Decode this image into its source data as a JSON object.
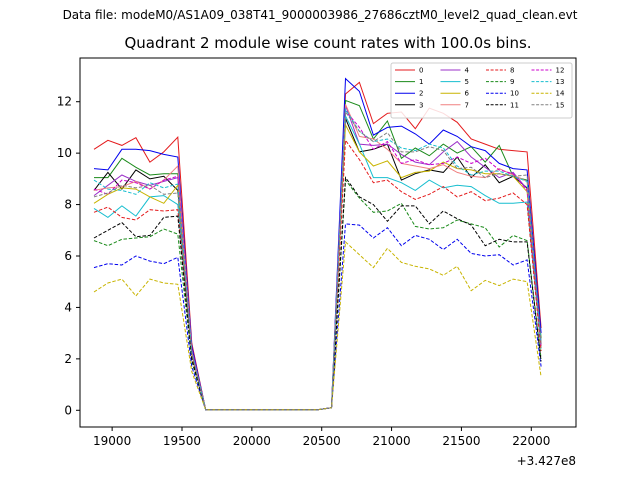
{
  "chart_data": {
    "type": "line",
    "suptitle": "Data file: modeM0/AS1A09_038T41_9000003986_27686cztM0_level2_quad_clean.evt",
    "title": "Quadrant 2 module wise count rates with 100.0s bins.",
    "xlabel": "",
    "ylabel": "",
    "offset_label": "+3.427e8",
    "xlim": [
      18770,
      22320
    ],
    "ylim": [
      -0.65,
      13.7
    ],
    "xticks": [
      19000,
      19500,
      20000,
      20500,
      21000,
      21500,
      22000
    ],
    "yticks": [
      0,
      2,
      4,
      6,
      8,
      10,
      12
    ],
    "legend_loc": "upper-right",
    "legend_ncol": 4,
    "x": [
      18870,
      18970,
      19070,
      19170,
      19270,
      19370,
      19470,
      19570,
      19670,
      19770,
      19870,
      19970,
      20070,
      20170,
      20270,
      20370,
      20470,
      20570,
      20670,
      20770,
      20870,
      20970,
      21070,
      21170,
      21270,
      21370,
      21470,
      21570,
      21670,
      21770,
      21870,
      21970,
      22070
    ],
    "series": [
      {
        "name": "0",
        "color": "#e41a1c",
        "dash": "solid",
        "values": [
          10.15,
          10.5,
          10.3,
          10.6,
          9.65,
          10.05,
          10.62,
          2.6,
          0.02,
          0.02,
          0.02,
          0.02,
          0.02,
          0.02,
          0.02,
          0.02,
          0.02,
          0.1,
          12.3,
          12.75,
          11.15,
          11.55,
          11.6,
          10.95,
          11.75,
          11.55,
          11.2,
          10.55,
          10.35,
          10.15,
          10.1,
          10.05,
          3.2
        ]
      },
      {
        "name": "1",
        "color": "#1a8a1a",
        "dash": "solid",
        "values": [
          9.05,
          9.05,
          9.8,
          9.45,
          9.15,
          9.2,
          9.2,
          2.4,
          0.02,
          0.02,
          0.02,
          0.02,
          0.02,
          0.02,
          0.02,
          0.02,
          0.02,
          0.1,
          12.05,
          11.85,
          10.55,
          11.25,
          9.8,
          10.2,
          9.9,
          10.35,
          10.0,
          10.25,
          9.65,
          10.3,
          9.1,
          8.95,
          2.8
        ]
      },
      {
        "name": "2",
        "color": "#0000ee",
        "dash": "solid",
        "values": [
          9.4,
          9.35,
          10.15,
          10.15,
          10.1,
          9.95,
          9.85,
          2.5,
          0.02,
          0.02,
          0.02,
          0.02,
          0.02,
          0.02,
          0.02,
          0.02,
          0.02,
          0.1,
          12.9,
          12.4,
          10.7,
          11.0,
          11.05,
          10.75,
          10.35,
          10.9,
          10.65,
          10.25,
          10.1,
          9.6,
          9.4,
          9.35,
          3.0
        ]
      },
      {
        "name": "3",
        "color": "#000000",
        "dash": "solid",
        "values": [
          8.55,
          9.25,
          8.6,
          9.35,
          9.0,
          9.1,
          8.55,
          2.3,
          0.02,
          0.02,
          0.02,
          0.02,
          0.02,
          0.02,
          0.02,
          0.02,
          0.02,
          0.1,
          11.35,
          10.05,
          10.15,
          10.35,
          8.95,
          9.2,
          9.35,
          9.25,
          9.85,
          9.05,
          9.55,
          8.85,
          9.1,
          8.65,
          2.6
        ]
      },
      {
        "name": "4",
        "color": "#9b30c8",
        "dash": "solid",
        "values": [
          8.35,
          8.75,
          9.15,
          8.9,
          8.75,
          8.9,
          9.05,
          2.3,
          0.02,
          0.02,
          0.02,
          0.02,
          0.02,
          0.02,
          0.02,
          0.02,
          0.02,
          0.1,
          11.85,
          10.35,
          10.3,
          10.35,
          9.95,
          9.65,
          9.55,
          10.05,
          10.45,
          9.85,
          9.45,
          9.05,
          9.25,
          8.6,
          2.5
        ]
      },
      {
        "name": "5",
        "color": "#17becf",
        "dash": "solid",
        "values": [
          7.85,
          7.5,
          7.95,
          7.55,
          8.3,
          8.35,
          8.0,
          2.2,
          0.02,
          0.02,
          0.02,
          0.02,
          0.02,
          0.02,
          0.02,
          0.02,
          0.02,
          0.1,
          11.45,
          10.35,
          9.05,
          9.05,
          8.85,
          8.55,
          8.95,
          8.65,
          8.75,
          8.7,
          8.35,
          8.05,
          8.05,
          8.1,
          2.4
        ]
      },
      {
        "name": "6",
        "color": "#c8b400",
        "dash": "solid",
        "values": [
          8.05,
          8.4,
          8.65,
          8.6,
          8.3,
          8.05,
          8.75,
          2.2,
          0.02,
          0.02,
          0.02,
          0.02,
          0.02,
          0.02,
          0.02,
          0.02,
          0.02,
          0.1,
          11.1,
          10.05,
          9.5,
          9.7,
          9.05,
          9.25,
          9.3,
          9.65,
          9.4,
          9.35,
          9.2,
          9.2,
          9.1,
          8.5,
          2.5
        ]
      },
      {
        "name": "7",
        "color": "#f08080",
        "dash": "solid",
        "values": [
          8.55,
          8.65,
          8.7,
          8.9,
          8.6,
          8.95,
          9.5,
          2.3,
          0.02,
          0.02,
          0.02,
          0.02,
          0.02,
          0.02,
          0.02,
          0.02,
          0.02,
          0.1,
          11.9,
          10.65,
          10.55,
          10.15,
          9.6,
          9.5,
          9.4,
          9.55,
          9.25,
          9.1,
          9.05,
          9.4,
          9.15,
          8.9,
          2.6
        ]
      },
      {
        "name": "8",
        "color": "#e41a1c",
        "dash": "dashed",
        "values": [
          7.7,
          7.9,
          7.5,
          7.4,
          7.8,
          7.75,
          7.8,
          2.1,
          0.02,
          0.02,
          0.02,
          0.02,
          0.02,
          0.02,
          0.02,
          0.02,
          0.02,
          0.1,
          10.5,
          9.75,
          8.85,
          8.95,
          8.5,
          8.2,
          8.4,
          8.7,
          8.3,
          8.5,
          8.15,
          8.25,
          8.45,
          8.0,
          2.3
        ]
      },
      {
        "name": "9",
        "color": "#1a8a1a",
        "dash": "dashed",
        "values": [
          6.6,
          6.4,
          6.65,
          6.7,
          6.75,
          7.05,
          6.85,
          1.9,
          0.02,
          0.02,
          0.02,
          0.02,
          0.02,
          0.02,
          0.02,
          0.02,
          0.02,
          0.1,
          8.95,
          8.25,
          7.7,
          7.75,
          8.05,
          7.15,
          7.05,
          7.1,
          7.4,
          7.25,
          7.1,
          6.35,
          6.8,
          6.6,
          2.0
        ]
      },
      {
        "name": "10",
        "color": "#0000ee",
        "dash": "dashed",
        "values": [
          5.55,
          5.7,
          5.65,
          6.0,
          5.8,
          5.7,
          5.95,
          1.7,
          0.02,
          0.02,
          0.02,
          0.02,
          0.02,
          0.02,
          0.02,
          0.02,
          0.02,
          0.1,
          7.25,
          7.2,
          6.7,
          7.1,
          6.4,
          6.8,
          6.65,
          6.25,
          6.65,
          6.1,
          6.0,
          6.05,
          5.65,
          5.85,
          1.7
        ]
      },
      {
        "name": "11",
        "color": "#000000",
        "dash": "dashed",
        "values": [
          6.7,
          7.0,
          7.3,
          6.75,
          6.8,
          7.5,
          7.55,
          2.0,
          0.02,
          0.02,
          0.02,
          0.02,
          0.02,
          0.02,
          0.02,
          0.02,
          0.02,
          0.1,
          9.05,
          8.3,
          8.0,
          7.35,
          7.95,
          7.95,
          7.25,
          7.75,
          7.45,
          7.2,
          6.4,
          6.65,
          6.55,
          6.55,
          1.9
        ]
      },
      {
        "name": "12",
        "color": "#cc00cc",
        "dash": "dashed",
        "values": [
          8.6,
          8.4,
          8.95,
          8.85,
          8.6,
          8.95,
          9.1,
          2.4,
          0.02,
          0.02,
          0.02,
          0.02,
          0.02,
          0.02,
          0.02,
          0.02,
          0.02,
          0.1,
          11.65,
          11.0,
          10.15,
          10.45,
          9.6,
          9.75,
          9.55,
          9.6,
          9.85,
          9.6,
          9.8,
          9.35,
          9.2,
          8.55,
          2.5
        ]
      },
      {
        "name": "13",
        "color": "#17becf",
        "dash": "dashed",
        "values": [
          8.95,
          8.6,
          8.55,
          8.4,
          8.85,
          8.65,
          8.8,
          2.3,
          0.02,
          0.02,
          0.02,
          0.02,
          0.02,
          0.02,
          0.02,
          0.02,
          0.02,
          0.1,
          11.7,
          10.85,
          10.45,
          10.55,
          10.2,
          10.1,
          10.35,
          10.2,
          9.5,
          9.15,
          9.3,
          9.3,
          9.1,
          8.9,
          2.6
        ]
      },
      {
        "name": "14",
        "color": "#c8b400",
        "dash": "dashed",
        "values": [
          4.6,
          4.95,
          5.1,
          4.45,
          5.1,
          4.95,
          4.9,
          1.5,
          0.02,
          0.02,
          0.02,
          0.02,
          0.02,
          0.02,
          0.02,
          0.02,
          0.02,
          0.1,
          6.55,
          6.05,
          5.55,
          6.3,
          5.75,
          5.6,
          5.5,
          5.25,
          5.6,
          4.65,
          5.05,
          4.85,
          5.1,
          5.0,
          1.3
        ]
      },
      {
        "name": "15",
        "color": "#808080",
        "dash": "dashed",
        "values": [
          8.3,
          8.45,
          8.75,
          8.65,
          8.75,
          8.4,
          8.45,
          2.2,
          0.02,
          0.02,
          0.02,
          0.02,
          0.02,
          0.02,
          0.02,
          0.02,
          0.02,
          0.1,
          11.6,
          10.85,
          10.45,
          10.8,
          10.05,
          10.05,
          10.25,
          10.1,
          9.4,
          9.45,
          9.05,
          9.2,
          9.1,
          9.15,
          2.6
        ]
      }
    ]
  }
}
